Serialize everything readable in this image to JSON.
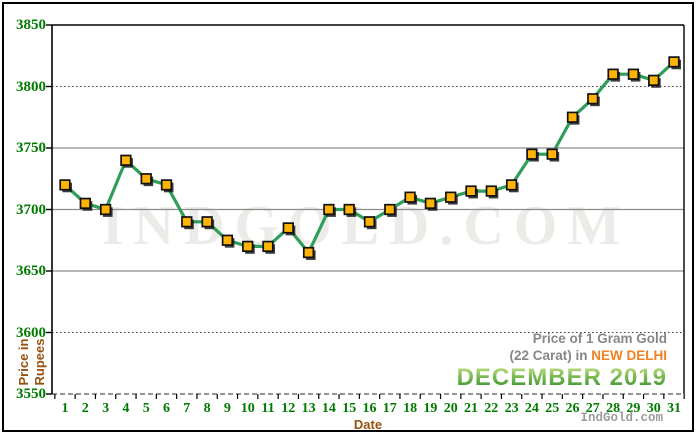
{
  "page": {
    "background": "#ffffff",
    "border_color": "#000000"
  },
  "chart_data": {
    "type": "line",
    "title": "Price of 1 Gram Gold (22 Carat) in NEW DELHI - DECEMBER 2019",
    "xlabel": "Date",
    "ylabel": "Price in Rupees",
    "x": [
      1,
      2,
      3,
      4,
      5,
      6,
      7,
      8,
      9,
      10,
      11,
      12,
      13,
      14,
      15,
      16,
      17,
      18,
      19,
      20,
      21,
      22,
      23,
      24,
      25,
      26,
      27,
      28,
      29,
      30,
      31
    ],
    "values": [
      3720,
      3705,
      3700,
      3740,
      3725,
      3720,
      3690,
      3690,
      3675,
      3670,
      3670,
      3685,
      3665,
      3700,
      3700,
      3690,
      3700,
      3710,
      3705,
      3710,
      3715,
      3715,
      3720,
      3745,
      3745,
      3775,
      3790,
      3810,
      3810,
      3805,
      3820
    ],
    "ylim": [
      3550,
      3850
    ],
    "yticks": [
      3850,
      3800,
      3750,
      3700,
      3650,
      3600,
      3550
    ],
    "grid_styles": {
      "3850": "border",
      "3800": "dotted",
      "3750": "solid",
      "3700": "solid",
      "3650": "solid",
      "3600": "dotted",
      "3550": "dashed"
    },
    "legend_position": "none",
    "grid": "on",
    "line_color": "#2f9e5a",
    "marker_shape": "square",
    "marker_color": "#ffb305",
    "marker_edge_color": "#101010",
    "axis_number_color": "#007b00",
    "axis_title_color": "#96510f",
    "solid_grid_color": "#8c8c8c"
  },
  "ylabel_block": {
    "line1": "Price in",
    "line2": "Rupees"
  },
  "xlabel_text": "Date",
  "title_block": {
    "line1": "Price of 1 Gram Gold",
    "line2_prefix": "(22 Carat) in ",
    "line2_city": "NEW DELHI",
    "line3": "DECEMBER 2019"
  },
  "watermark": "INDGOLD.COM",
  "brand": "IndGold.com"
}
